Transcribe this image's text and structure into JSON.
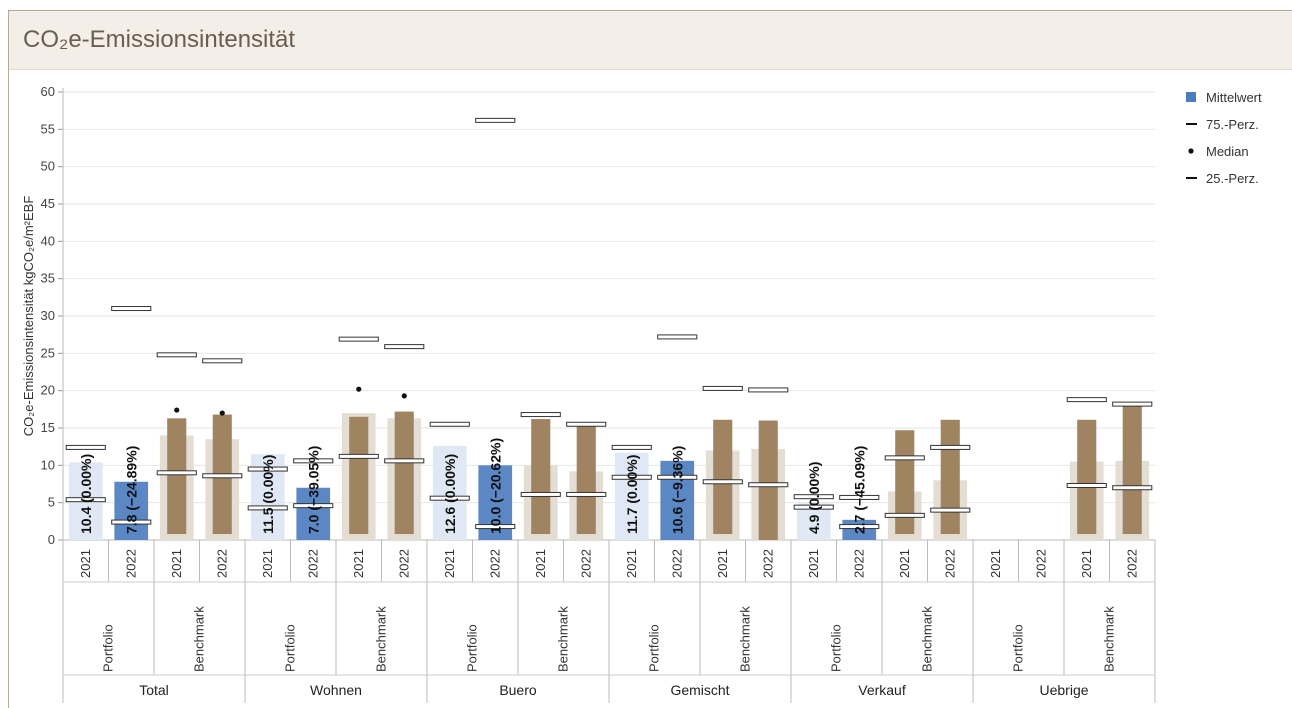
{
  "title": "CO₂e-Emissionsintensität",
  "chart_data": {
    "type": "bar",
    "ylabel": "CO₂e-Emissionsintensität kgCO₂e/m²EBF",
    "ylim": [
      0,
      60
    ],
    "yticks": [
      0,
      5,
      10,
      15,
      20,
      25,
      30,
      35,
      40,
      45,
      50,
      55,
      60
    ],
    "grid": true,
    "legend_placement": "top-right",
    "legend": [
      {
        "label": "Mittelwert",
        "symbol": "square",
        "color": "#4a7dc0"
      },
      {
        "label": "75.-Perz.",
        "symbol": "dash"
      },
      {
        "label": "Median",
        "symbol": "dot"
      },
      {
        "label": "25.-Perz.",
        "symbol": "dash"
      }
    ],
    "colors": {
      "portfolio": "#5b87c5",
      "portfolio_light": "#dfe8f4",
      "benchmark": "#a08462",
      "benchmark_light": "#e4ddd4"
    },
    "groups": [
      {
        "name": "Total",
        "subgroups": [
          {
            "name": "Portfolio",
            "bars": [
              {
                "year": "2021",
                "mean": 10.4,
                "p75": 12.4,
                "median": null,
                "p25": 5.4,
                "label": "10.4 (0.00%)",
                "highlight": false
              },
              {
                "year": "2022",
                "mean": 7.8,
                "p75": 31.0,
                "median": null,
                "p25": 2.4,
                "label": "7.8 (−24.89%)",
                "highlight": true
              }
            ]
          },
          {
            "name": "Benchmark",
            "bars": [
              {
                "year": "2021",
                "mean": 14.0,
                "p75": 24.8,
                "median": 17.4,
                "p25": 9.0,
                "box": [
                  0.8,
                  16.3
                ],
                "label": "",
                "highlight": false
              },
              {
                "year": "2022",
                "mean": 13.5,
                "p75": 24.0,
                "median": 17.0,
                "p25": 8.6,
                "box": [
                  0.8,
                  16.8
                ],
                "label": "",
                "highlight": false
              }
            ]
          }
        ]
      },
      {
        "name": "Wohnen",
        "subgroups": [
          {
            "name": "Portfolio",
            "bars": [
              {
                "year": "2021",
                "mean": 11.5,
                "p75": 9.5,
                "median": null,
                "p25": 4.3,
                "label": "11.5 (0.00%)",
                "highlight": false
              },
              {
                "year": "2022",
                "mean": 7.0,
                "p75": 10.6,
                "median": null,
                "p25": 4.6,
                "label": "7.0 (−39.05%)",
                "highlight": true
              }
            ]
          },
          {
            "name": "Benchmark",
            "bars": [
              {
                "year": "2021",
                "mean": 17.0,
                "p75": 26.9,
                "median": 20.2,
                "p25": 11.2,
                "box": [
                  0.8,
                  16.5
                ],
                "label": "",
                "highlight": false
              },
              {
                "year": "2022",
                "mean": 16.3,
                "p75": 25.9,
                "median": 19.3,
                "p25": 10.6,
                "box": [
                  0.8,
                  17.2
                ],
                "label": "",
                "highlight": false
              }
            ]
          }
        ]
      },
      {
        "name": "Buero",
        "subgroups": [
          {
            "name": "Portfolio",
            "bars": [
              {
                "year": "2021",
                "mean": 12.6,
                "p75": 15.5,
                "median": null,
                "p25": 5.6,
                "label": "12.6 (0.00%)",
                "highlight": false
              },
              {
                "year": "2022",
                "mean": 10.0,
                "p75": 56.2,
                "median": null,
                "p25": 1.8,
                "label": "10.0 (−20.62%)",
                "highlight": true
              }
            ]
          },
          {
            "name": "Benchmark",
            "bars": [
              {
                "year": "2021",
                "mean": 10.0,
                "p75": 16.8,
                "median": null,
                "p25": 6.1,
                "box": [
                  0.8,
                  16.2
                ],
                "label": "",
                "highlight": false
              },
              {
                "year": "2022",
                "mean": 9.2,
                "p75": 15.5,
                "median": null,
                "p25": 6.1,
                "box": [
                  0.8,
                  15.6
                ],
                "label": "",
                "highlight": false
              }
            ]
          }
        ]
      },
      {
        "name": "Gemischt",
        "subgroups": [
          {
            "name": "Portfolio",
            "bars": [
              {
                "year": "2021",
                "mean": 11.7,
                "p75": 12.4,
                "median": null,
                "p25": 8.4,
                "label": "11.7 (0.00%)",
                "highlight": false
              },
              {
                "year": "2022",
                "mean": 10.6,
                "p75": 27.2,
                "median": null,
                "p25": 8.4,
                "label": "10.6 (−9.36%)",
                "highlight": true
              }
            ]
          },
          {
            "name": "Benchmark",
            "bars": [
              {
                "year": "2021",
                "mean": 12.0,
                "p75": 20.3,
                "median": null,
                "p25": 7.8,
                "box": [
                  0.8,
                  16.1
                ],
                "label": "",
                "highlight": false
              },
              {
                "year": "2022",
                "mean": 12.2,
                "p75": 20.1,
                "median": null,
                "p25": 7.4,
                "box": [
                  0.0,
                  16.0
                ],
                "label": "",
                "highlight": false
              }
            ]
          }
        ]
      },
      {
        "name": "Verkauf",
        "subgroups": [
          {
            "name": "Portfolio",
            "bars": [
              {
                "year": "2021",
                "mean": 4.9,
                "p75": 5.8,
                "median": null,
                "p25": 4.4,
                "label": "4.9 (0.00%)",
                "highlight": false
              },
              {
                "year": "2022",
                "mean": 2.7,
                "p75": 5.7,
                "median": null,
                "p25": 1.8,
                "label": "2.7 (−45.09%)",
                "highlight": true
              }
            ]
          },
          {
            "name": "Benchmark",
            "bars": [
              {
                "year": "2021",
                "mean": 6.5,
                "p75": 11.0,
                "median": null,
                "p25": 3.3,
                "box": [
                  0.8,
                  14.7
                ],
                "label": "",
                "highlight": false
              },
              {
                "year": "2022",
                "mean": 8.0,
                "p75": 12.4,
                "median": null,
                "p25": 4.0,
                "box": [
                  0.8,
                  16.1
                ],
                "label": "",
                "highlight": false
              }
            ]
          }
        ]
      },
      {
        "name": "Uebrige",
        "subgroups": [
          {
            "name": "Portfolio",
            "bars": [
              {
                "year": "2021",
                "mean": null,
                "p75": null,
                "median": null,
                "p25": null,
                "label": "",
                "highlight": false
              },
              {
                "year": "2022",
                "mean": null,
                "p75": null,
                "median": null,
                "p25": null,
                "label": "",
                "highlight": false
              }
            ]
          },
          {
            "name": "Benchmark",
            "bars": [
              {
                "year": "2021",
                "mean": 10.5,
                "p75": 18.8,
                "median": null,
                "p25": 7.3,
                "box": [
                  0.8,
                  16.1
                ],
                "label": "",
                "highlight": false
              },
              {
                "year": "2022",
                "mean": 10.6,
                "p75": 18.2,
                "median": null,
                "p25": 7.0,
                "box": [
                  0.8,
                  18.2
                ],
                "label": "",
                "highlight": false
              }
            ]
          }
        ]
      }
    ]
  }
}
